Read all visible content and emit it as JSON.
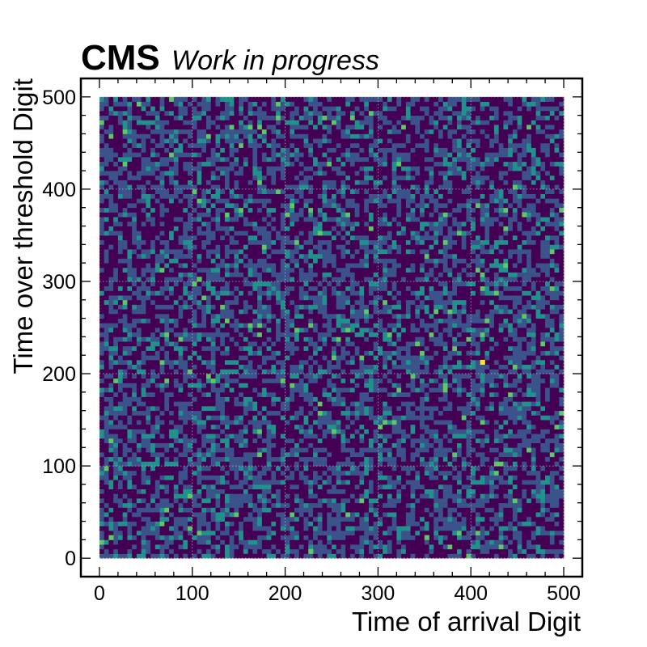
{
  "header": {
    "experiment": "CMS",
    "status": "Work in progress"
  },
  "chart_data": {
    "type": "heatmap",
    "xlabel": "Time of arrival Digit",
    "ylabel": "Time over threshold Digit",
    "xlim": [
      -20,
      520
    ],
    "ylim": [
      -20,
      520
    ],
    "x_ticks": [
      "0",
      "100",
      "200",
      "300",
      "400",
      "500"
    ],
    "y_ticks": [
      "0",
      "100",
      "200",
      "300",
      "400",
      "500"
    ],
    "bins": {
      "x_range": [
        0,
        500
      ],
      "y_range": [
        0,
        500
      ],
      "n_x": 100,
      "n_y": 100
    },
    "colormap": [
      "#440154",
      "#3b528b",
      "#21918c",
      "#5ec962",
      "#fde725"
    ],
    "grid": true,
    "hot_cells": [
      {
        "x": 412,
        "y": 212,
        "level": 1.0
      },
      {
        "x": 457,
        "y": 372,
        "level": 0.85
      },
      {
        "x": 107,
        "y": 302,
        "level": 0.7
      },
      {
        "x": 227,
        "y": 7,
        "level": 0.7
      },
      {
        "x": 12,
        "y": 22,
        "level": 0.65
      },
      {
        "x": 352,
        "y": 22,
        "level": 0.65
      }
    ]
  }
}
